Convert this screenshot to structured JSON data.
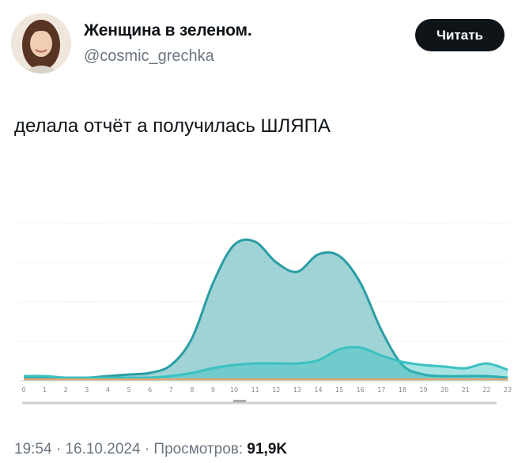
{
  "author": {
    "name": "Женщина в зеленом.",
    "handle": "@cosmic_grechka"
  },
  "follow_button": {
    "label": "Читать"
  },
  "tweet": {
    "text": "делала отчёт а получилась ШЛЯПА"
  },
  "meta": {
    "time": "19:54",
    "separator": "·",
    "date": "16.10.2024",
    "views_label": "Просмотров:",
    "views_value": "91,9K"
  },
  "chart_data": {
    "type": "area",
    "x": [
      0,
      1,
      2,
      3,
      4,
      5,
      6,
      7,
      8,
      9,
      10,
      11,
      12,
      13,
      14,
      15,
      16,
      17,
      18,
      19,
      20,
      21,
      22,
      23
    ],
    "ylim": [
      0,
      100
    ],
    "grid": true,
    "series": [
      {
        "color": "#2a9da3",
        "values": [
          2,
          2,
          2,
          2,
          3,
          4,
          5,
          10,
          27,
          62,
          86,
          88,
          75,
          69,
          80,
          79,
          62,
          32,
          10,
          4,
          3,
          3,
          3,
          2
        ]
      },
      {
        "color": "#3ac1c1",
        "values": [
          3,
          3,
          2,
          2,
          2,
          2,
          2,
          3,
          5,
          8,
          10,
          11,
          11,
          11,
          13,
          20,
          21,
          16,
          12,
          10,
          9,
          8,
          11,
          7
        ]
      },
      {
        "color": "#e8a46a",
        "values": [
          1,
          1,
          1,
          1,
          1,
          1,
          1,
          1,
          1,
          1,
          1,
          1,
          1,
          1,
          1,
          1,
          1,
          1,
          1,
          1,
          1,
          1,
          1,
          1
        ]
      }
    ]
  }
}
